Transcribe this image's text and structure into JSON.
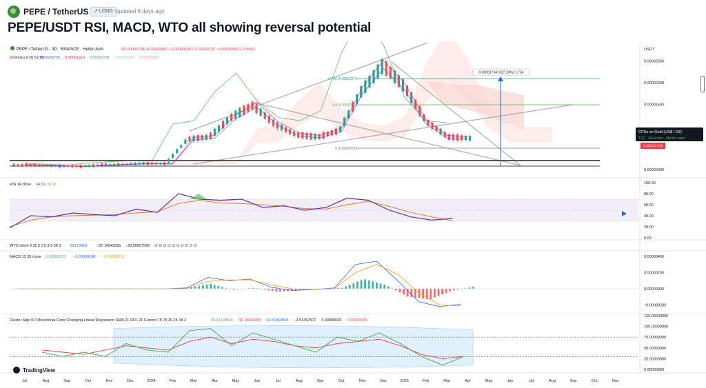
{
  "header": {
    "symbol": "PEPE / TetherUS",
    "badge": "↗ LONG",
    "updated": "Updated 6 days ago"
  },
  "title": "PEPE/USDT RSI, MACD, WTO all showing reversal potential",
  "legend": {
    "main": "PEPE / TetherUS · 3D · BINANCE · Heikin Ashi",
    "ohlc": "O0.00000758 H0.00000807 L0.00000690 C0.00000735 −0.00000006 (−0.84%)",
    "ichimoku": "Ichimoku 9 26 52 26",
    "ichimoku_values": [
      "0.00000725",
      "0.00001314",
      "0.00000735",
      "0.00001020",
      "0.00001681"
    ],
    "rsi": "RSI 14 close",
    "rsi_values": [
      "34.53",
      "30.12"
    ],
    "wto": "WTO ohlc4 9 11 3 1.5 3 6 30 3",
    "wto_values": [
      "-32173463",
      "−27.14943055",
      "−29.56007995",
      "∅ ∅ ∅ ∅ ∅ ∅ ∅ ∅ ∅ ∅"
    ],
    "macd": "MACD 12 26 close",
    "macd_values": [
      "0.00000027",
      "−0.00000188",
      "−0.00000215"
    ],
    "cluster": "Cluster Algo 9 0 Directional Color Changing Linear Regression SMA 21 OFF 21 Current 75 70 30 25 34 2",
    "cluster_values": [
      "30.61428516",
      "31.18023498",
      "64.87464568",
      "−2.51397572",
      "0.00000000",
      "0.00000000"
    ]
  },
  "colors": {
    "up": "#26a69a",
    "down": "#ef5350",
    "rsi": "#5b2fb0",
    "rsi_ma": "#e67e22",
    "macd": "#2962ff",
    "signal": "#ff9800",
    "green": "#4caf50",
    "red": "#f23645",
    "blue": "#2196f3"
  },
  "annotations": {
    "currency": "USDT",
    "fib": [
      {
        "label": "0.786 (0.00002274)",
        "value": 2.274e-05
      },
      {
        "label": "0.5 (0.00001611)",
        "value": 1.611e-05
      },
      {
        "label": "0 (0.00000525)",
        "value": 5.25e-06
      }
    ],
    "measure": "0.00001734 (327.24%) 1,734",
    "price_box": "0.00000720",
    "tooltip": {
      "title": "CFDs on Gold (US$ / OZ)",
      "line": "TVC · Real-time · Market open"
    },
    "watermark": "TradingView"
  },
  "chart_data": [
    {
      "type": "line",
      "title": "PEPE / TetherUS · 3D · BINANCE · Heikin Ashi",
      "x": [
        "Jul",
        "Aug",
        "Sep",
        "Oct",
        "Nov",
        "Dec",
        "2024",
        "Feb",
        "Mar",
        "Apr",
        "May",
        "Jun",
        "Jul",
        "Aug",
        "Sep",
        "Oct",
        "Nov",
        "Dec",
        "2025",
        "Feb",
        "Mar",
        "Apr"
      ],
      "series": [
        {
          "name": "PEPE / TetherUS",
          "values": [
            1.1e-06,
            1e-06,
            8e-07,
            7e-07,
            1e-06,
            1.2e-06,
            1.4e-06,
            1.3e-06,
            7e-06,
            7.5e-06,
            1.2e-05,
            1.48e-05,
            1.05e-05,
            8e-06,
            7.5e-06,
            9e-06,
            1.8e-05,
            2.4e-05,
            1.9e-05,
            1.1e-05,
            7.5e-06,
            7.2e-06
          ]
        }
      ],
      "y_ticks": [
        "0.00002500",
        "0.00002000",
        "0.00001500",
        "0.00000500",
        "0.00000000"
      ],
      "ylim": [
        0,
        2.7e-05
      ]
    },
    {
      "type": "line",
      "title": "RSI 14 close",
      "series": [
        {
          "name": "RSI",
          "values": [
            18,
            40,
            38,
            45,
            42,
            40,
            52,
            46,
            80,
            70,
            68,
            70,
            55,
            58,
            50,
            55,
            72,
            68,
            50,
            38,
            32,
            35
          ]
        },
        {
          "name": "RSI MA",
          "values": [
            20,
            32,
            38,
            40,
            41,
            42,
            45,
            47,
            62,
            68,
            63,
            62,
            60,
            57,
            53,
            52,
            60,
            66,
            57,
            46,
            38,
            31
          ]
        }
      ],
      "y_ticks": [
        "100.00",
        "80.00",
        "60.00",
        "40.00",
        "20.00",
        "0.00"
      ],
      "ylim": [
        0,
        100
      ]
    },
    {
      "type": "bar",
      "title": "MACD 12 26 close",
      "series": [
        {
          "name": "MACD",
          "values": [
            0,
            0,
            0,
            0,
            0,
            0,
            0,
            0,
            1e-07,
            1.4e-06,
            1e-06,
            1.2e-06,
            2e-07,
            -2e-07,
            -1e-07,
            1e-07,
            3e-06,
            3.4e-06,
            1e-06,
            -1.6e-06,
            -2.2e-06,
            -1.9e-06
          ]
        },
        {
          "name": "Signal",
          "values": [
            0,
            0,
            0,
            0,
            0,
            0,
            0,
            0,
            0,
            9e-07,
            1.1e-06,
            1.1e-06,
            5e-07,
            0,
            -1e-07,
            0,
            2e-06,
            3e-06,
            1.8e-06,
            -5e-07,
            -2e-06,
            -2.1e-06
          ]
        }
      ],
      "y_ticks": [
        "0.00000400",
        "0.00000200",
        "0.00000000",
        "−0.00000200"
      ],
      "ylim": [
        -2.8e-06,
        4.5e-06
      ]
    },
    {
      "type": "line",
      "title": "Cluster Algo",
      "series": [
        {
          "name": "Cluster",
          "values": [
            55,
            40,
            30,
            40,
            30,
            60,
            45,
            40,
            90,
            95,
            55,
            85,
            70,
            55,
            40,
            75,
            65,
            85,
            60,
            30,
            10,
            30
          ]
        },
        {
          "name": "Regression",
          "values": [
            50,
            45,
            40,
            35,
            45,
            55,
            50,
            45,
            65,
            75,
            60,
            70,
            65,
            55,
            50,
            60,
            65,
            70,
            55,
            35,
            25,
            30
          ]
        }
      ],
      "y_ticks": [
        "125.00000000",
        "100.00000000",
        "75.00000000",
        "50.00000000",
        "25.00000000",
        "0.00000000"
      ],
      "ylim": [
        0,
        125
      ]
    }
  ],
  "x_axis_labels": [
    "Jul",
    "Aug",
    "Sep",
    "Oct",
    "Nov",
    "Dec",
    "2024",
    "Feb",
    "Mar",
    "Apr",
    "May",
    "Jun",
    "Jul",
    "Aug",
    "Sep",
    "Oct",
    "Nov",
    "Dec",
    "2025",
    "Feb",
    "Mar",
    "Apr",
    "May",
    "Jun",
    "Jul",
    "Aug",
    "Sep",
    "Oct",
    "Nov"
  ]
}
